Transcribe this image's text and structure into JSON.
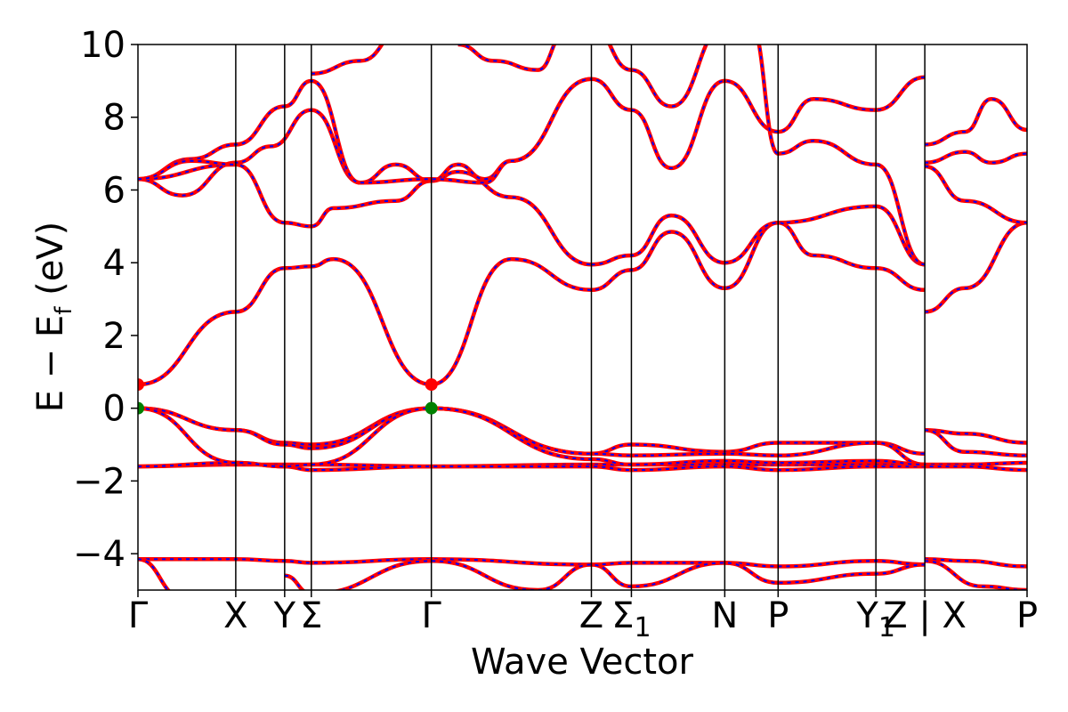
{
  "chart_data": {
    "type": "line",
    "title": "",
    "xlabel": "Wave Vector",
    "ylabel": "E − E",
    "ylabel_sub": "f",
    "ylabel_unit": " (eV)",
    "ylim": [
      -5,
      10
    ],
    "xlim": [
      0,
      10
    ],
    "yticks": [
      -4,
      -2,
      0,
      2,
      4,
      6,
      8,
      10
    ],
    "ytick_labels": [
      "−4",
      "−2",
      "0",
      "2",
      "4",
      "6",
      "8",
      "10"
    ],
    "kpoints": [
      {
        "x": 0.0,
        "label": "Γ",
        "sub": ""
      },
      {
        "x": 1.1,
        "label": "X",
        "sub": ""
      },
      {
        "x": 1.65,
        "label": "Y",
        "sub": ""
      },
      {
        "x": 1.95,
        "label": "Σ",
        "sub": ""
      },
      {
        "x": 3.3,
        "label": "Γ",
        "sub": ""
      },
      {
        "x": 5.1,
        "label": "Z",
        "sub": ""
      },
      {
        "x": 5.55,
        "label": "Σ",
        "sub": "1"
      },
      {
        "x": 6.6,
        "label": "N",
        "sub": ""
      },
      {
        "x": 7.2,
        "label": "P",
        "sub": ""
      },
      {
        "x": 8.3,
        "label": "Y",
        "sub": "1"
      },
      {
        "x": 8.85,
        "label": "Z | X",
        "sub": ""
      },
      {
        "x": 10.0,
        "label": "P",
        "sub": ""
      }
    ],
    "series_colors": {
      "band": "#ff0000",
      "band_dash": "#0000ff",
      "cbm": "#ff0000",
      "vbm": "#008000"
    },
    "grid": false,
    "extrema": [
      {
        "kind": "cbm",
        "x": 0.0,
        "y": 0.65
      },
      {
        "kind": "vbm",
        "x": 0.0,
        "y": 0.0
      },
      {
        "kind": "cbm",
        "x": 3.3,
        "y": 0.65
      },
      {
        "kind": "vbm",
        "x": 3.3,
        "y": 0.0
      }
    ],
    "bands": [
      {
        "points": [
          [
            0,
            -1.6
          ],
          [
            1.1,
            -1.55
          ],
          [
            1.65,
            -1.55
          ],
          [
            1.95,
            -1.55
          ],
          [
            3.3,
            -1.6
          ],
          [
            5.1,
            -1.55
          ],
          [
            5.55,
            -1.55
          ],
          [
            6.6,
            -1.55
          ],
          [
            7.2,
            -1.55
          ],
          [
            8.3,
            -1.55
          ],
          [
            8.85,
            -1.55
          ],
          [
            9.3,
            -1.55
          ],
          [
            10,
            -1.5
          ]
        ]
      },
      {
        "points": [
          [
            0,
            -1.6
          ],
          [
            1.1,
            -1.5
          ],
          [
            1.65,
            -1.6
          ],
          [
            1.95,
            -1.7
          ],
          [
            3.3,
            -1.6
          ],
          [
            5.1,
            -1.6
          ],
          [
            5.55,
            -1.7
          ],
          [
            6.6,
            -1.6
          ],
          [
            7.2,
            -1.7
          ],
          [
            8.3,
            -1.6
          ],
          [
            8.85,
            -1.6
          ],
          [
            9.3,
            -1.6
          ],
          [
            10,
            -1.7
          ]
        ]
      },
      {
        "points": [
          [
            0,
            0
          ],
          [
            1.1,
            -0.6
          ],
          [
            1.65,
            -0.95
          ],
          [
            1.95,
            -1.0
          ],
          [
            3.3,
            0
          ],
          [
            5.1,
            -1.25
          ],
          [
            5.55,
            -1.0
          ],
          [
            6.6,
            -1.2
          ],
          [
            7.2,
            -0.95
          ],
          [
            8.3,
            -0.95
          ],
          [
            8.85,
            -1.25
          ]
        ]
      },
      {
        "points": [
          [
            0,
            0
          ],
          [
            1.1,
            -0.6
          ],
          [
            1.65,
            -1.0
          ],
          [
            1.95,
            -1.1
          ],
          [
            3.3,
            0
          ],
          [
            5.1,
            -1.25
          ],
          [
            5.55,
            -1.3
          ],
          [
            6.6,
            -1.25
          ],
          [
            7.2,
            -1.3
          ],
          [
            8.3,
            -0.95
          ],
          [
            8.85,
            -1.55
          ]
        ]
      },
      {
        "points": [
          [
            0,
            0
          ],
          [
            1.1,
            -1.5
          ],
          [
            1.65,
            -1.6
          ],
          [
            1.95,
            -1.55
          ],
          [
            3.3,
            0
          ],
          [
            5.1,
            -1.4
          ],
          [
            5.55,
            -1.55
          ],
          [
            6.6,
            -1.45
          ],
          [
            7.2,
            -1.5
          ],
          [
            8.3,
            -1.45
          ],
          [
            8.85,
            -1.55
          ]
        ]
      },
      {
        "points": [
          [
            8.85,
            -0.6
          ],
          [
            9.3,
            -0.7
          ],
          [
            10,
            -0.95
          ]
        ]
      },
      {
        "points": [
          [
            8.85,
            -0.6
          ],
          [
            9.3,
            -1.2
          ],
          [
            10,
            -1.3
          ]
        ]
      },
      {
        "points": [
          [
            0,
            0.65
          ],
          [
            1.1,
            2.65
          ],
          [
            1.65,
            3.85
          ],
          [
            1.95,
            3.9
          ],
          [
            2.2,
            4.1
          ],
          [
            3.3,
            0.65
          ],
          [
            4.2,
            4.1
          ],
          [
            5.1,
            3.25
          ],
          [
            5.55,
            3.8
          ],
          [
            6.0,
            4.85
          ],
          [
            6.6,
            3.3
          ],
          [
            7.2,
            5.1
          ],
          [
            8.3,
            5.55
          ],
          [
            8.85,
            3.95
          ]
        ]
      },
      {
        "points": [
          [
            5.1,
            3.95
          ],
          [
            5.55,
            4.2
          ],
          [
            6.0,
            5.3
          ],
          [
            6.6,
            4.0
          ],
          [
            7.2,
            5.1
          ],
          [
            7.6,
            4.2
          ],
          [
            8.3,
            3.85
          ],
          [
            8.85,
            3.25
          ]
        ]
      },
      {
        "points": [
          [
            8.85,
            2.65
          ],
          [
            9.3,
            3.3
          ],
          [
            10,
            5.1
          ]
        ]
      },
      {
        "points": [
          [
            8.85,
            6.65
          ],
          [
            9.3,
            5.7
          ],
          [
            10,
            5.1
          ]
        ]
      },
      {
        "points": [
          [
            0,
            6.3
          ],
          [
            1.1,
            6.7
          ],
          [
            1.65,
            5.1
          ],
          [
            1.95,
            5.0
          ],
          [
            2.2,
            5.5
          ],
          [
            2.9,
            5.7
          ],
          [
            3.3,
            6.25
          ],
          [
            3.6,
            6.5
          ],
          [
            4.2,
            5.8
          ],
          [
            5.1,
            3.95
          ]
        ]
      },
      {
        "points": [
          [
            0,
            6.3
          ],
          [
            0.5,
            5.85
          ],
          [
            1.1,
            6.75
          ],
          [
            1.5,
            7.2
          ],
          [
            1.95,
            8.2
          ],
          [
            2.5,
            6.2
          ],
          [
            2.9,
            6.7
          ],
          [
            3.3,
            6.25
          ],
          [
            3.6,
            6.7
          ],
          [
            3.9,
            6.3
          ],
          [
            4.2,
            6.8
          ],
          [
            5.1,
            9.05
          ],
          [
            5.55,
            8.2
          ],
          [
            6.0,
            6.6
          ],
          [
            6.6,
            9.0
          ],
          [
            7.2,
            7.6
          ],
          [
            7.6,
            8.5
          ],
          [
            8.3,
            8.2
          ],
          [
            8.85,
            9.1
          ]
        ]
      },
      {
        "points": [
          [
            0,
            6.3
          ],
          [
            0.6,
            6.85
          ],
          [
            1.1,
            7.25
          ],
          [
            1.65,
            8.3
          ],
          [
            1.95,
            9.0
          ],
          [
            2.5,
            6.2
          ],
          [
            3.3,
            6.3
          ],
          [
            3.9,
            6.2
          ],
          [
            4.2,
            6.8
          ],
          [
            5.1,
            9.05
          ]
        ]
      },
      {
        "points": [
          [
            0,
            6.3
          ],
          [
            0.6,
            6.8
          ],
          [
            1.1,
            6.7
          ]
        ]
      },
      {
        "points": [
          [
            5.1,
            10.5
          ],
          [
            5.55,
            9.3
          ],
          [
            6.0,
            8.3
          ],
          [
            6.6,
            10.5
          ]
        ]
      },
      {
        "points": [
          [
            6.9,
            10.5
          ],
          [
            7.2,
            7.0
          ],
          [
            7.6,
            7.35
          ],
          [
            8.3,
            6.7
          ],
          [
            8.85,
            3.95
          ]
        ]
      },
      {
        "points": [
          [
            8.85,
            7.25
          ],
          [
            9.3,
            7.6
          ],
          [
            9.6,
            8.5
          ],
          [
            10,
            7.65
          ]
        ]
      },
      {
        "points": [
          [
            8.85,
            6.75
          ],
          [
            9.3,
            7.05
          ],
          [
            9.6,
            6.75
          ],
          [
            10,
            7.0
          ]
        ]
      },
      {
        "points": [
          [
            1.95,
            9.2
          ],
          [
            2.5,
            9.55
          ],
          [
            3.0,
            10.5
          ]
        ]
      },
      {
        "points": [
          [
            3.6,
            10.0
          ],
          [
            4.0,
            9.55
          ],
          [
            4.5,
            9.3
          ],
          [
            4.8,
            10.3
          ]
        ]
      },
      {
        "points": [
          [
            0,
            -4.15
          ],
          [
            1.1,
            -4.15
          ],
          [
            1.65,
            -4.2
          ],
          [
            1.95,
            -4.25
          ],
          [
            3.3,
            -4.15
          ],
          [
            5.1,
            -4.3
          ],
          [
            5.55,
            -4.25
          ],
          [
            6.6,
            -4.25
          ],
          [
            7.2,
            -4.35
          ],
          [
            8.3,
            -4.2
          ],
          [
            8.85,
            -4.3
          ]
        ]
      },
      {
        "points": [
          [
            0,
            -4.15
          ],
          [
            0.5,
            -5.2
          ],
          [
            1.1,
            -5.5
          ]
        ]
      },
      {
        "points": [
          [
            1.65,
            -4.6
          ],
          [
            1.95,
            -5.1
          ],
          [
            3.3,
            -4.2
          ],
          [
            4.5,
            -5.0
          ],
          [
            5.1,
            -4.3
          ],
          [
            5.55,
            -4.9
          ],
          [
            6.6,
            -4.25
          ],
          [
            7.2,
            -4.8
          ],
          [
            8.3,
            -4.55
          ],
          [
            8.85,
            -4.3
          ]
        ]
      },
      {
        "points": [
          [
            8.85,
            -4.15
          ],
          [
            9.3,
            -4.2
          ],
          [
            10,
            -4.35
          ]
        ]
      },
      {
        "points": [
          [
            8.85,
            -4.2
          ],
          [
            9.5,
            -4.9
          ],
          [
            10,
            -5.0
          ]
        ]
      }
    ]
  }
}
